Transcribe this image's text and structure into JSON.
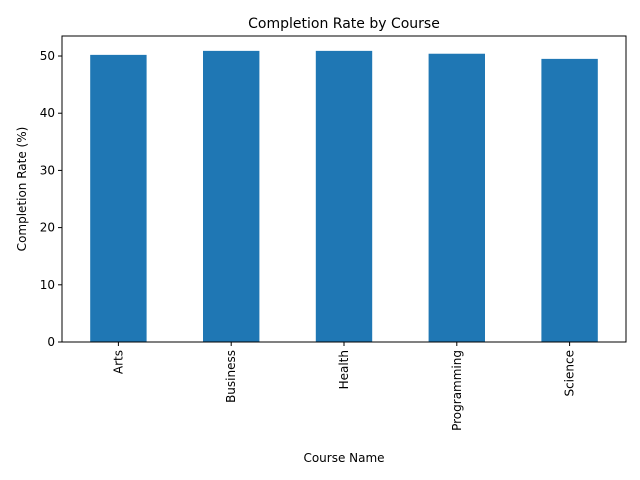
{
  "chart_data": {
    "type": "bar",
    "title": "Completion Rate by Course",
    "xlabel": "Course Name",
    "ylabel": "Completion Rate (%)",
    "categories": [
      "Arts",
      "Business",
      "Health",
      "Programming",
      "Science"
    ],
    "values": [
      50.2,
      50.9,
      50.9,
      50.4,
      49.5
    ],
    "ylim": [
      0,
      53.5
    ],
    "yticks": [
      0,
      10,
      20,
      30,
      40,
      50
    ],
    "bar_color": "#1f77b4",
    "grid": false,
    "legend": "none"
  }
}
